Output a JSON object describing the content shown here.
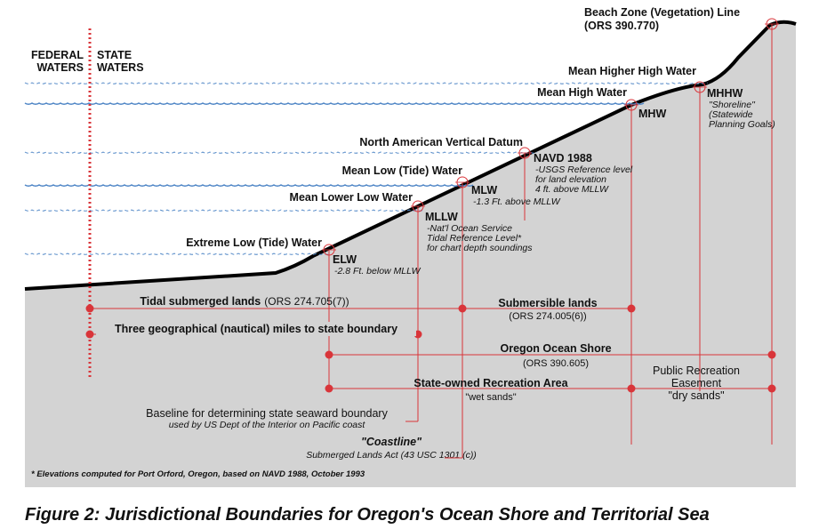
{
  "boundary": {
    "federal": [
      "FEDERAL",
      "WATERS"
    ],
    "state": [
      "STATE",
      "WATERS"
    ]
  },
  "water_levels": [
    "Mean Higher High Water",
    "Mean High Water",
    "North American Vertical Datum",
    "Mean Low (Tide) Water",
    "Mean Lower Low Water",
    "Extreme Low (Tide) Water"
  ],
  "points": [
    {
      "code": "ELW",
      "notes": [
        "-2.8 Ft. below MLLW"
      ]
    },
    {
      "code": "MLLW",
      "notes": [
        "-Nat'l Ocean Service",
        "Tidal Reference Level*",
        "for chart depth soundings"
      ]
    },
    {
      "code": "MLW",
      "notes": [
        "-1.3 Ft. above MLLW"
      ]
    },
    {
      "code": "NAVD 1988",
      "notes": [
        "-USGS Reference level",
        "for land elevation",
        "4 ft. above MLLW"
      ]
    },
    {
      "code": "MHW",
      "notes": []
    },
    {
      "code": "MHHW",
      "notes": [
        "\"Shoreline\"",
        "(Statewide",
        "Planning Goals)"
      ]
    }
  ],
  "beach_line": {
    "title": "Beach Zone (Vegetation) Line",
    "ref": "(ORS 390.770)"
  },
  "zones": {
    "tidal": {
      "name": "Tidal submerged lands",
      "ref": "(ORS 274.705(7))"
    },
    "submersible": {
      "name": "Submersible lands",
      "ref": "(ORS 274.005(6))"
    },
    "three_miles": "Three geographical (nautical) miles to state boundary",
    "ocean_shore": {
      "name": "Oregon Ocean Shore",
      "ref": "(ORS 390.605)"
    },
    "public_recreation": [
      "Public Recreation",
      "Easement",
      "\"dry sands\""
    ],
    "state_recreation": {
      "name": "State-owned Recreation Area",
      "note": "\"wet sands\""
    }
  },
  "baseline": [
    "Baseline for determining state seaward boundary",
    "used by US Dept of the Interior on Pacific coast"
  ],
  "coastline": {
    "title": "\"Coastline\"",
    "ref": "Submerged Lands Act (43 USC 1301 (c))"
  },
  "footnote": "* Elevations computed for Port Orford, Oregon, based on NAVD 1988, October 1993",
  "caption": "Figure 2:  Jurisdictional Boundaries for Oregon's Ocean Shore and Territorial Sea"
}
